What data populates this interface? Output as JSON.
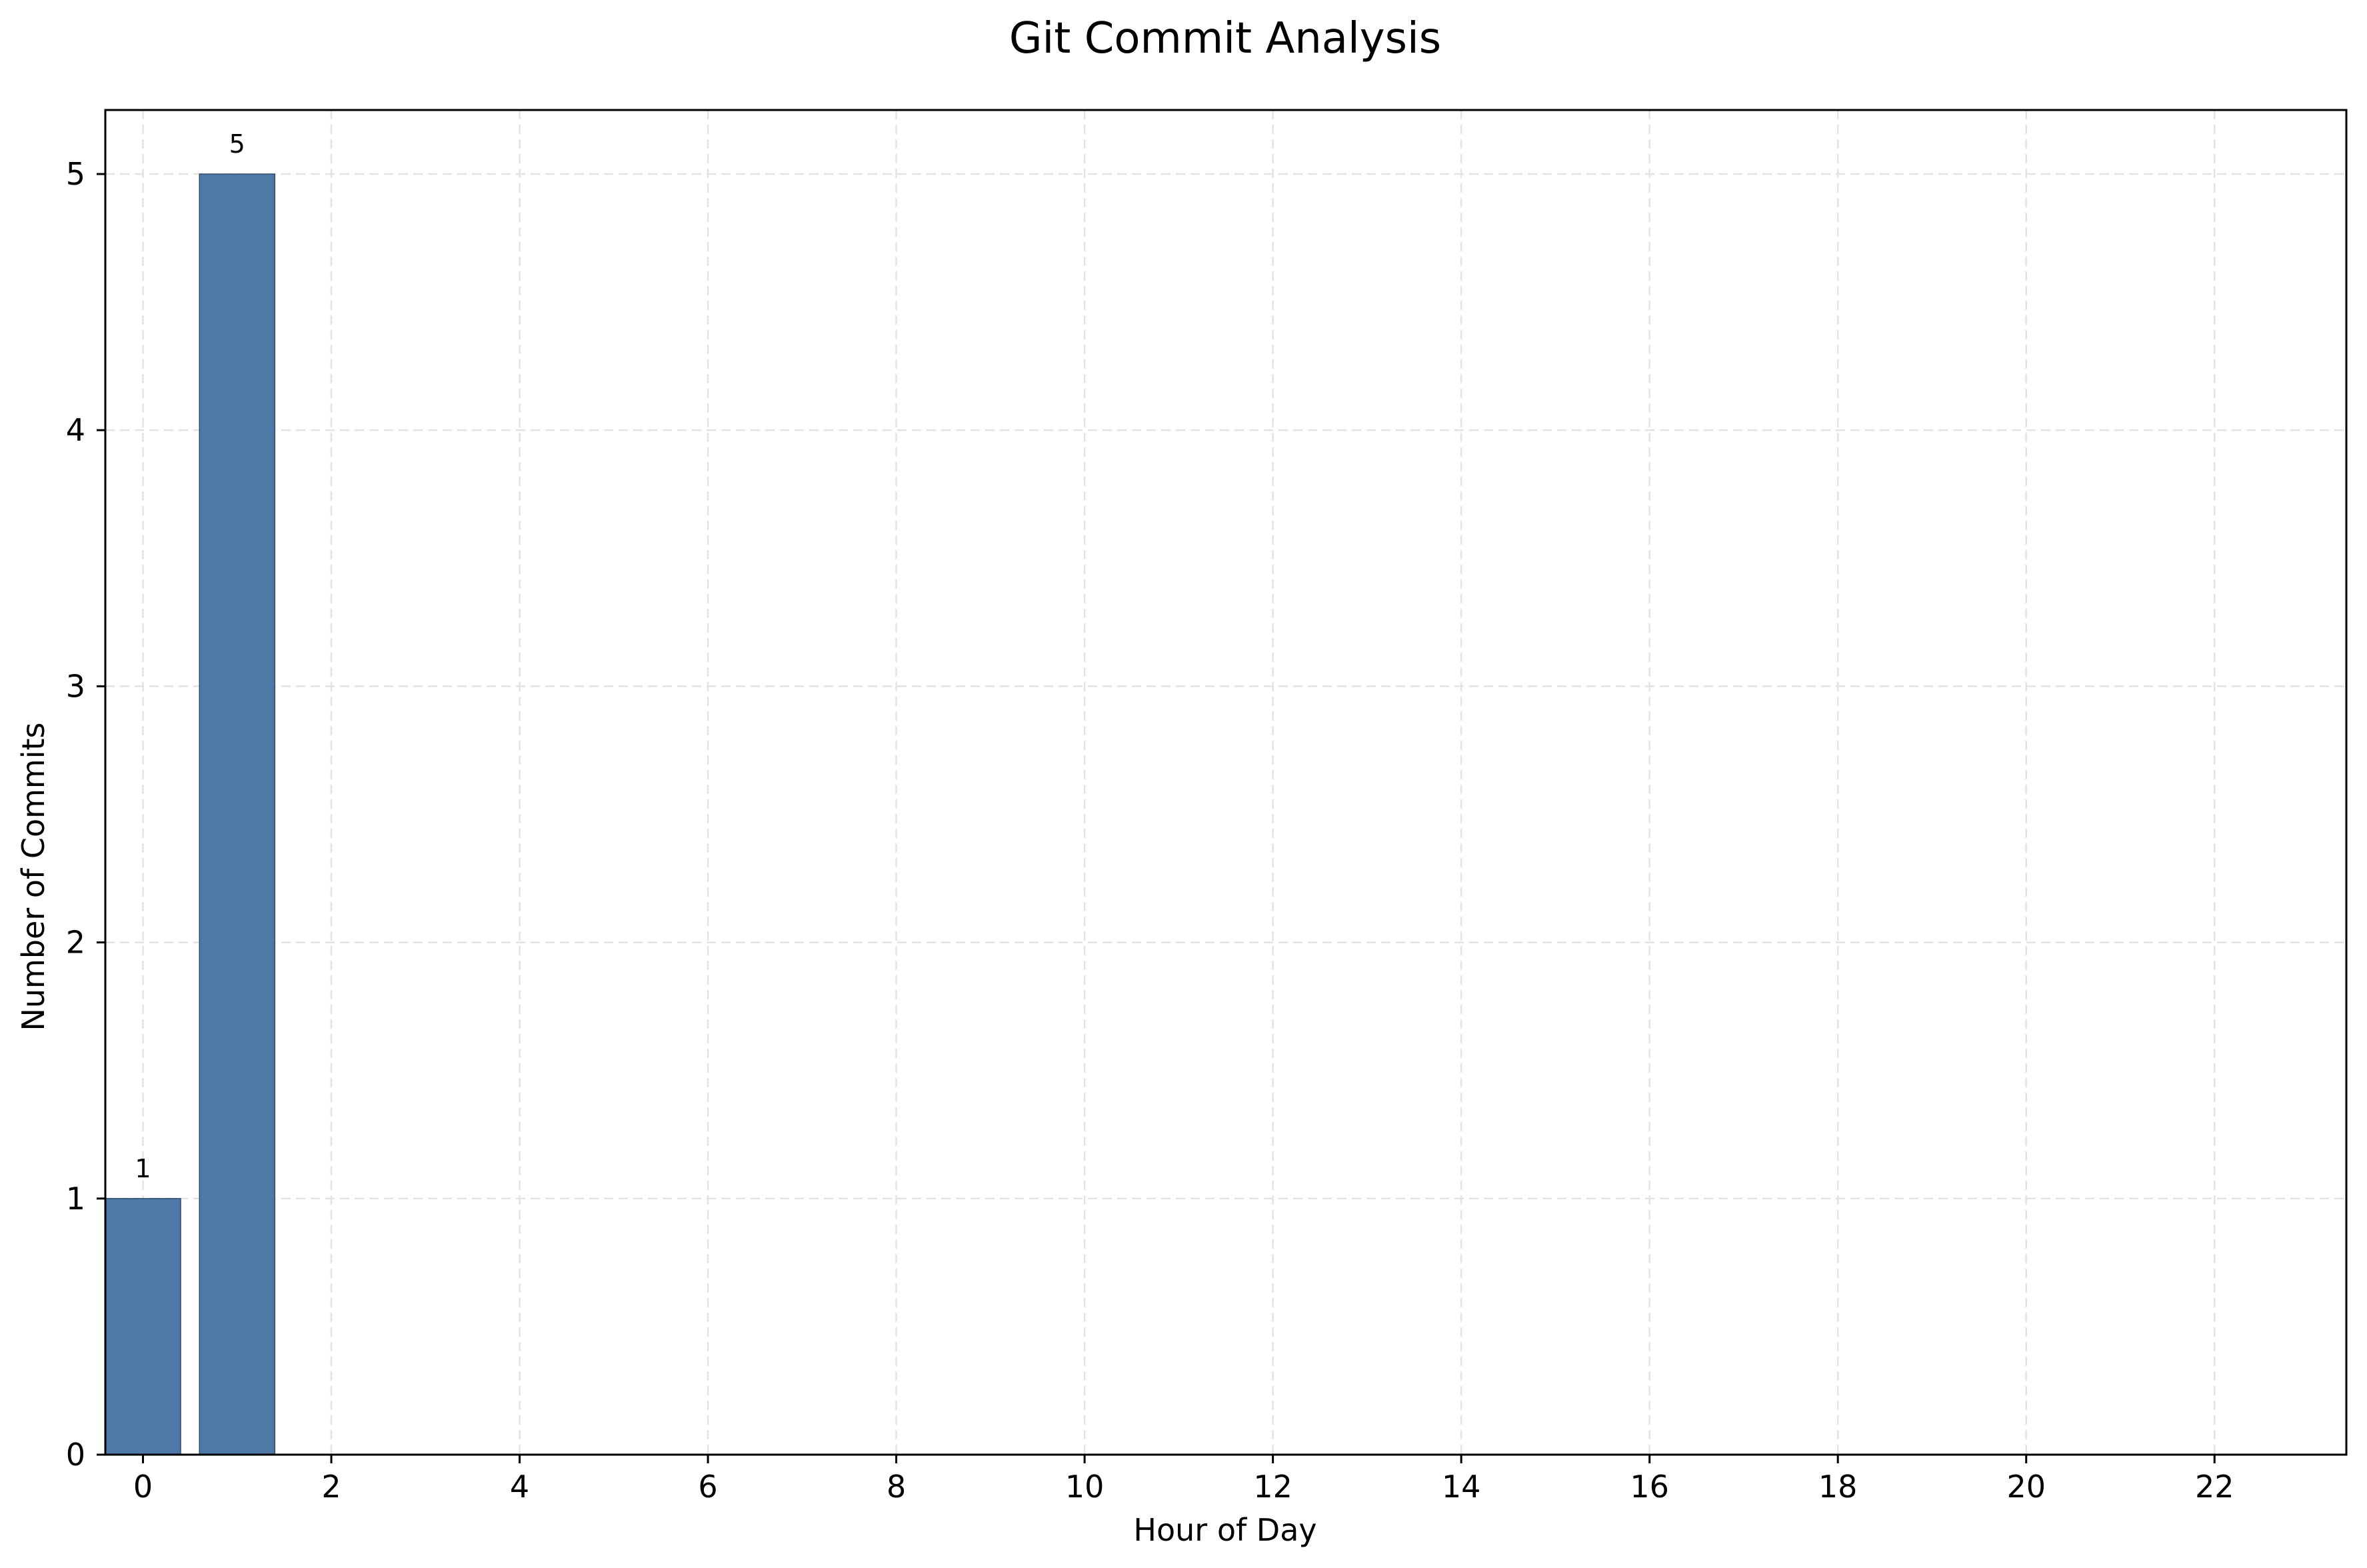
{
  "chart_data": {
    "type": "bar",
    "title": "Git Commit Analysis",
    "xlabel": "Hour of Day",
    "ylabel": "Number of Commits",
    "x": [
      0,
      1
    ],
    "values": [
      1,
      5
    ],
    "data_labels": [
      "1",
      "5"
    ],
    "xlim": [
      -0.4,
      23.4
    ],
    "ylim": [
      0,
      5.25
    ],
    "x_ticks": [
      0,
      2,
      4,
      6,
      8,
      10,
      12,
      14,
      16,
      18,
      20,
      22
    ],
    "y_ticks": [
      0,
      1,
      2,
      3,
      4,
      5
    ],
    "bar_width": 0.8,
    "grid": true,
    "grid_style": "dashed",
    "legend": "none",
    "bar_color": "#4e79a7",
    "bar_edge_color": "#2f4e6e"
  }
}
